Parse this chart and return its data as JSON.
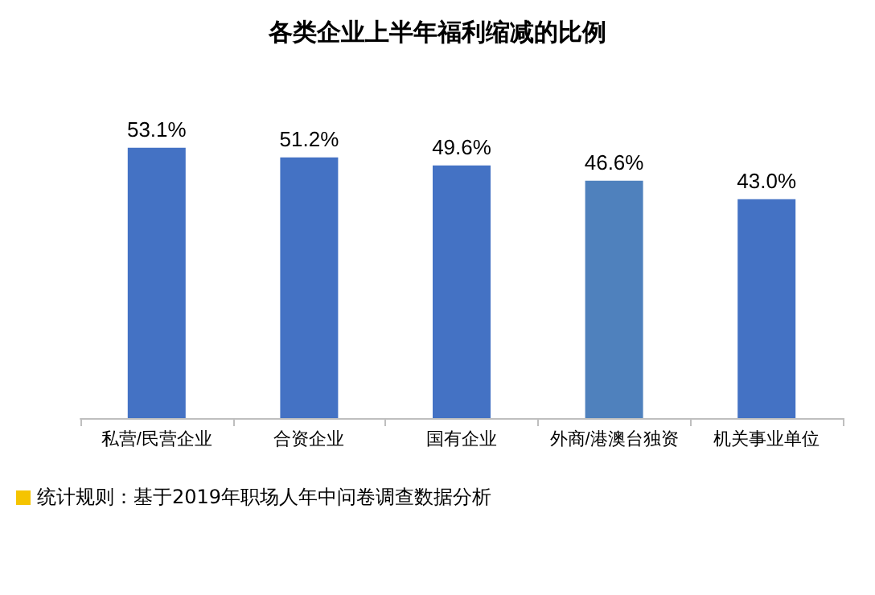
{
  "chart_data": {
    "type": "bar",
    "title": "各类企业上半年福利缩减的比例",
    "categories": [
      "私营/民营企业",
      "合资企业",
      "国有企业",
      "外商/港澳台独资",
      "机关事业单位"
    ],
    "values": [
      53.1,
      51.2,
      49.6,
      46.6,
      43.0
    ],
    "colors": [
      "#4472c4",
      "#4472c4",
      "#4472c4",
      "#4f81bd",
      "#4472c4"
    ],
    "value_labels": [
      "53.1%",
      "51.2%",
      "49.6%",
      "46.6%",
      "43.0%"
    ],
    "annotations": [
      "统计规则：基于2019年职场人年中问卷调查数据分析"
    ]
  }
}
